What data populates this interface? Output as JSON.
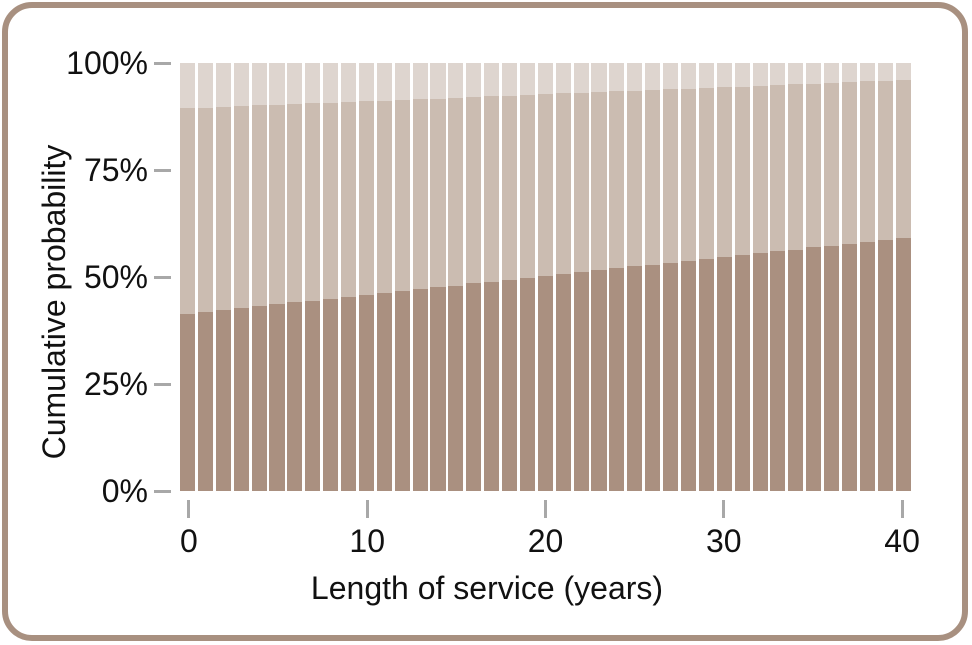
{
  "figure": {
    "border_color": "#a89080",
    "background_color": "#ffffff",
    "tick_color": "#a8a8a8",
    "text_color": "#111111"
  },
  "chart_data": {
    "type": "bar",
    "stacked": true,
    "orientation": "vertical",
    "title": "",
    "xlabel": "Length of service (years)",
    "ylabel": "Cumulative probability",
    "ylim": [
      0,
      100
    ],
    "grid": false,
    "legend": "none",
    "bar_gap_color": "#ffffff",
    "x": [
      0,
      1,
      2,
      3,
      4,
      5,
      6,
      7,
      8,
      9,
      10,
      11,
      12,
      13,
      14,
      15,
      16,
      17,
      18,
      19,
      20,
      21,
      22,
      23,
      24,
      25,
      26,
      27,
      28,
      29,
      30,
      31,
      32,
      33,
      34,
      35,
      36,
      37,
      38,
      39,
      40
    ],
    "x_tick_values": [
      0,
      10,
      20,
      30,
      40
    ],
    "x_tick_labels": [
      "0",
      "10",
      "20",
      "30",
      "40"
    ],
    "y_tick_values": [
      0,
      25,
      50,
      75,
      100
    ],
    "y_tick_labels": [
      "0%",
      "25%",
      "50%",
      "75%",
      "100%"
    ],
    "series": [
      {
        "name": "series-1-bottom",
        "color": "#aa9080",
        "cumulative_to": [
          41.4,
          41.8,
          42.3,
          42.7,
          43.2,
          43.6,
          44.1,
          44.5,
          44.9,
          45.4,
          45.8,
          46.3,
          46.7,
          47.2,
          47.6,
          48.0,
          48.5,
          48.9,
          49.4,
          49.8,
          50.3,
          50.7,
          51.1,
          51.6,
          52.0,
          52.5,
          52.9,
          53.3,
          53.8,
          54.2,
          54.7,
          55.1,
          55.6,
          56.0,
          56.4,
          56.9,
          57.3,
          57.8,
          58.2,
          58.7,
          59.1
        ]
      },
      {
        "name": "series-2-middle",
        "color": "#cbbcb1",
        "cumulative_to": [
          89.4,
          89.6,
          89.7,
          89.9,
          90.1,
          90.2,
          90.4,
          90.6,
          90.7,
          90.9,
          91.1,
          91.2,
          91.4,
          91.5,
          91.7,
          91.9,
          92.0,
          92.2,
          92.4,
          92.5,
          92.7,
          92.9,
          93.0,
          93.2,
          93.4,
          93.5,
          93.7,
          93.9,
          94.0,
          94.2,
          94.4,
          94.5,
          94.7,
          94.8,
          95.0,
          95.2,
          95.3,
          95.5,
          95.7,
          95.8,
          96.0
        ]
      },
      {
        "name": "series-3-top",
        "color": "#ded5cf",
        "cumulative_to": [
          100,
          100,
          100,
          100,
          100,
          100,
          100,
          100,
          100,
          100,
          100,
          100,
          100,
          100,
          100,
          100,
          100,
          100,
          100,
          100,
          100,
          100,
          100,
          100,
          100,
          100,
          100,
          100,
          100,
          100,
          100,
          100,
          100,
          100,
          100,
          100,
          100,
          100,
          100,
          100,
          100
        ]
      }
    ]
  }
}
